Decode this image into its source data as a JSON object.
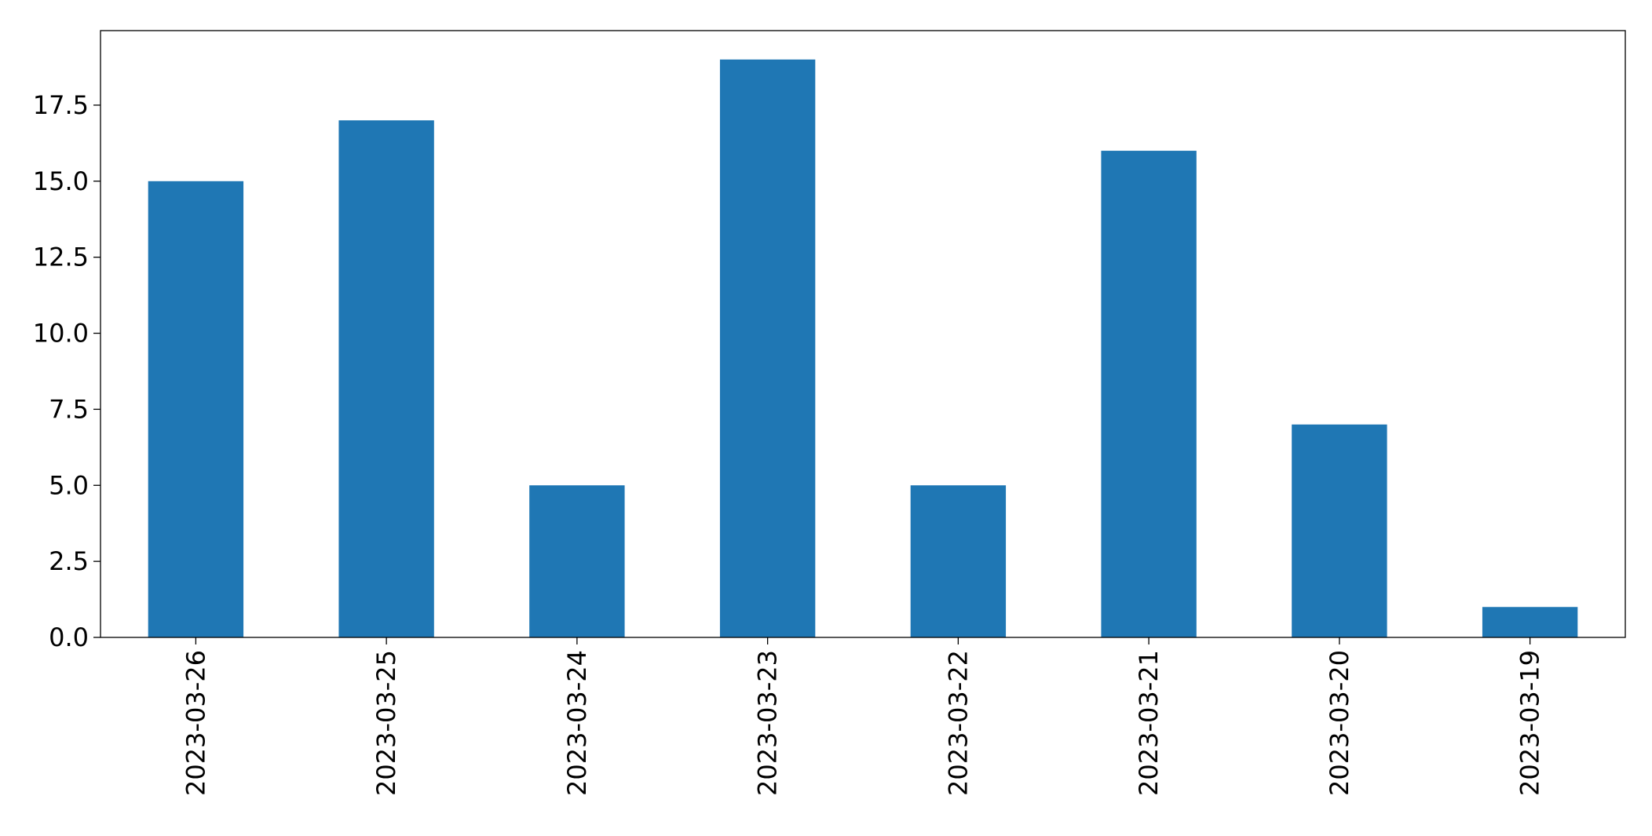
{
  "chart_data": {
    "type": "bar",
    "title": "",
    "xlabel": "",
    "ylabel": "",
    "categories": [
      "2023-03-26",
      "2023-03-25",
      "2023-03-24",
      "2023-03-23",
      "2023-03-22",
      "2023-03-21",
      "2023-03-20",
      "2023-03-19"
    ],
    "values": [
      15,
      17,
      5,
      19,
      5,
      16,
      7,
      1
    ],
    "ylim": [
      0,
      19.95
    ],
    "yticks": [
      "0.0",
      "2.5",
      "5.0",
      "7.5",
      "10.0",
      "12.5",
      "15.0",
      "17.5"
    ],
    "ytick_values": [
      0,
      2.5,
      5,
      7.5,
      10,
      12.5,
      15,
      17.5
    ],
    "bar_color": "#1f77b4",
    "grid": false,
    "legend": false
  }
}
